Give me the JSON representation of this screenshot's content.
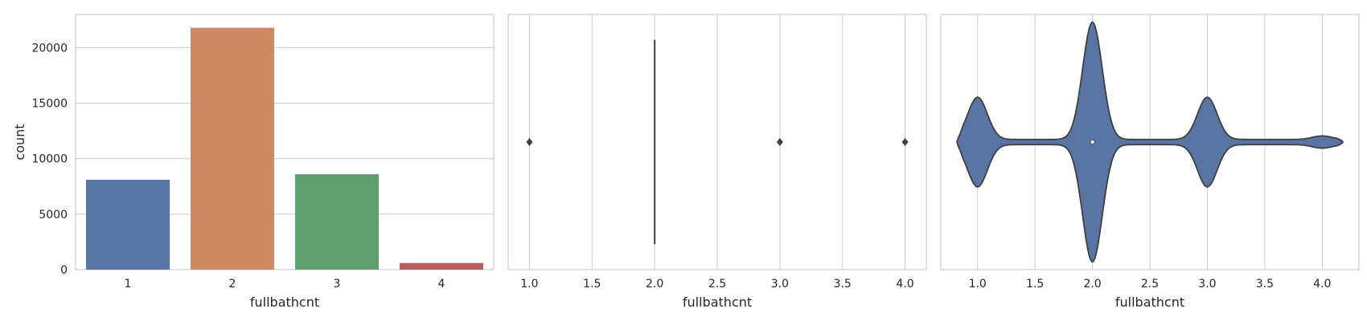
{
  "chart_data": [
    {
      "type": "bar",
      "categories": [
        "1",
        "2",
        "3",
        "4"
      ],
      "values": [
        8100,
        21800,
        8600,
        600
      ],
      "colors": [
        "#5875a4",
        "#cc8963",
        "#5f9e6e",
        "#b55d60"
      ],
      "xlabel": "fullbathcnt",
      "ylabel": "count",
      "ylim": [
        0,
        23000
      ],
      "yticks": [
        0,
        5000,
        10000,
        15000,
        20000
      ],
      "grid": "horizontal"
    },
    {
      "type": "box",
      "xlabel": "fullbathcnt",
      "xlim": [
        0.83,
        4.17
      ],
      "xticks": [
        "1.0",
        "1.5",
        "2.0",
        "2.5",
        "3.0",
        "3.5",
        "4.0"
      ],
      "median": 2.0,
      "q1": 2.0,
      "q3": 2.0,
      "outliers": [
        1.0,
        3.0,
        4.0
      ],
      "grid": "vertical"
    },
    {
      "type": "violin",
      "xlabel": "fullbathcnt",
      "xlim": [
        0.68,
        4.32
      ],
      "xticks": [
        "1.0",
        "1.5",
        "2.0",
        "2.5",
        "3.0",
        "3.5",
        "4.0"
      ],
      "density_points": [
        1.0,
        2.0,
        3.0,
        4.0
      ],
      "density_heights": [
        0.36,
        1.0,
        0.36,
        0.03
      ],
      "median": 2.0,
      "color": "#5875a4",
      "grid": "vertical"
    }
  ]
}
